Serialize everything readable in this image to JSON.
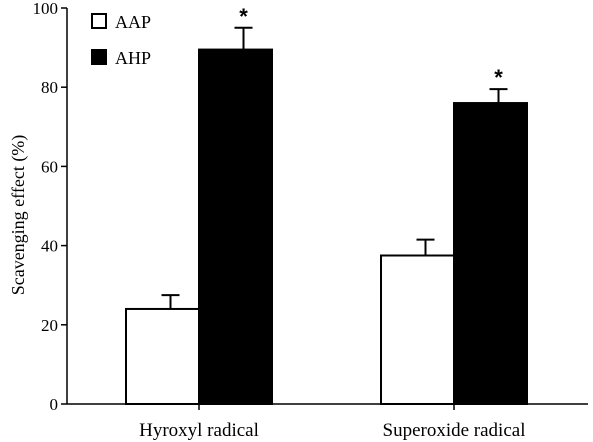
{
  "chart_data": {
    "type": "bar",
    "ylabel": "Scavenging effect (%)",
    "xlabel": "",
    "ylim": [
      0,
      100
    ],
    "yticks": [
      0,
      20,
      40,
      60,
      80,
      100
    ],
    "categories": [
      "Hyroxyl radical",
      "Superoxide radical"
    ],
    "series": [
      {
        "name": "AAP",
        "values": [
          24,
          37.5
        ],
        "errors": [
          3.5,
          4
        ],
        "color": "#ffffff",
        "stroke": "#000000",
        "significance": [
          "",
          ""
        ]
      },
      {
        "name": "AHP",
        "values": [
          89.5,
          76
        ],
        "errors": [
          5.5,
          3.5
        ],
        "color": "#000000",
        "stroke": "#000000",
        "significance": [
          "*",
          "*"
        ]
      }
    ],
    "legend": "top-left",
    "grid": false
  }
}
